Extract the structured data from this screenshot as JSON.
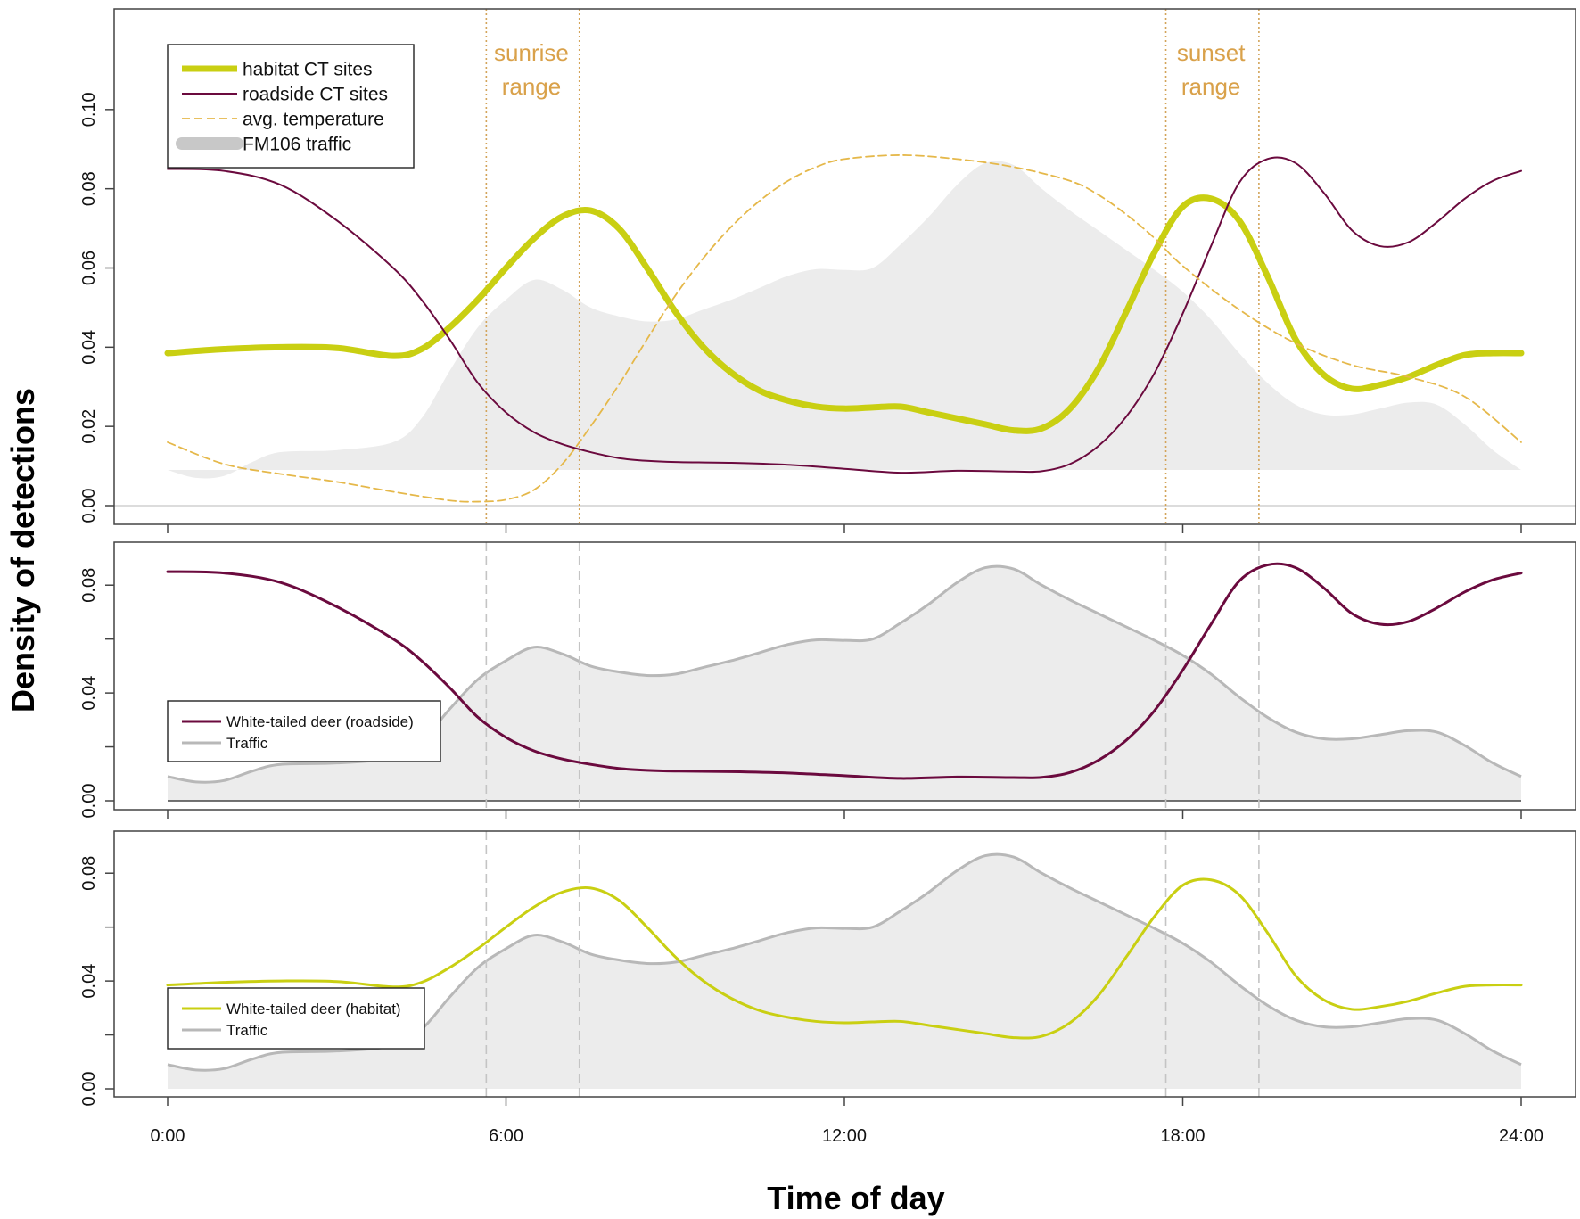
{
  "colors": {
    "habitat": "#c9cf12",
    "roadside": "#6b0a3e",
    "temperature": "#e5b84a",
    "traffic_fill": "#ececec",
    "traffic_line": "#b8b8b8",
    "annotation": "#d9a14a",
    "guide_top": "#d3a45a",
    "guide_lower": "#c4c4c4"
  },
  "figure": {
    "xlabel": "Time of day",
    "ylabel": "Density of detections"
  },
  "chart_data": [
    {
      "type": "line",
      "panel": "top",
      "xlim": [
        0,
        24
      ],
      "ylim": [
        0,
        0.12
      ],
      "xticks": [
        0,
        6,
        12,
        18,
        24
      ],
      "xtick_labels": [
        "0:00",
        "6:00",
        "12:00",
        "18:00",
        "24:00"
      ],
      "yticks": [
        0,
        0.02,
        0.04,
        0.06,
        0.08,
        0.1
      ],
      "ytick_labels": [
        "0.00",
        "0.02",
        "0.04",
        "0.06",
        "0.08",
        "0.10"
      ],
      "guides": [
        5.65,
        7.3,
        17.7,
        19.35
      ],
      "annotations": [
        {
          "lines": [
            "sunrise",
            "range"
          ],
          "x": 6.45
        },
        {
          "lines": [
            "sunset",
            "range"
          ],
          "x": 18.5
        }
      ],
      "legend": {
        "position": "top-left",
        "entries": [
          {
            "label": "habitat CT sites",
            "style": "habitat-thick"
          },
          {
            "label": "roadside CT sites",
            "style": "roadside-thin"
          },
          {
            "label": "avg. temperature",
            "style": "temperature-dashed"
          },
          {
            "label": "FM106 traffic",
            "style": "traffic-band"
          }
        ]
      },
      "series": [
        {
          "name": "habitat CT sites",
          "style": "habitat-thick",
          "x": [
            0,
            1,
            2,
            3,
            4,
            4.5,
            5,
            5.5,
            6,
            6.5,
            7,
            7.5,
            8,
            8.5,
            9,
            9.5,
            10,
            10.5,
            11,
            11.5,
            12,
            12.5,
            13,
            13.5,
            14,
            14.5,
            15,
            15.5,
            16,
            16.5,
            17,
            17.5,
            18,
            18.5,
            19,
            19.5,
            20,
            20.5,
            21,
            21.5,
            22,
            22.5,
            23,
            23.5,
            24
          ],
          "y": [
            0.0385,
            0.0395,
            0.04,
            0.0398,
            0.0378,
            0.0395,
            0.045,
            0.052,
            0.06,
            0.0675,
            0.073,
            0.0745,
            0.07,
            0.06,
            0.049,
            0.04,
            0.0335,
            0.029,
            0.0265,
            0.025,
            0.0245,
            0.0248,
            0.025,
            0.0235,
            0.022,
            0.0205,
            0.019,
            0.0195,
            0.0245,
            0.0345,
            0.049,
            0.064,
            0.0755,
            0.0775,
            0.072,
            0.058,
            0.042,
            0.033,
            0.0295,
            0.0305,
            0.0325,
            0.0355,
            0.038,
            0.0385,
            0.0385
          ]
        },
        {
          "name": "roadside CT sites",
          "style": "roadside-thin",
          "x": [
            0,
            1,
            2,
            3,
            4,
            4.5,
            5,
            5.5,
            6,
            6.5,
            7,
            7.5,
            8,
            8.5,
            9,
            10,
            11,
            12,
            13,
            14,
            15,
            15.5,
            16,
            16.5,
            17,
            17.5,
            18,
            18.5,
            19,
            19.5,
            20,
            20.5,
            21,
            21.5,
            22,
            22.5,
            23,
            23.5,
            24
          ],
          "y": [
            0.085,
            0.0845,
            0.081,
            0.072,
            0.06,
            0.052,
            0.042,
            0.031,
            0.0235,
            0.0185,
            0.0155,
            0.0135,
            0.012,
            0.0113,
            0.011,
            0.0108,
            0.0103,
            0.0093,
            0.0083,
            0.0088,
            0.0086,
            0.0087,
            0.0105,
            0.015,
            0.0225,
            0.0335,
            0.0485,
            0.0655,
            0.0815,
            0.0875,
            0.0865,
            0.079,
            0.0695,
            0.0655,
            0.0665,
            0.0715,
            0.0775,
            0.082,
            0.0845
          ]
        },
        {
          "name": "avg. temperature",
          "style": "temperature-dashed",
          "x": [
            0,
            1,
            2,
            3,
            4,
            5,
            5.5,
            6,
            6.5,
            7,
            7.5,
            8,
            8.5,
            9,
            9.5,
            10,
            10.5,
            11,
            11.5,
            12,
            13,
            14,
            15,
            16,
            16.5,
            17,
            17.5,
            18,
            19,
            20,
            21,
            22,
            23,
            24
          ],
          "y": [
            0.016,
            0.0105,
            0.008,
            0.006,
            0.0035,
            0.0013,
            0.001,
            0.0015,
            0.004,
            0.0105,
            0.02,
            0.0305,
            0.042,
            0.053,
            0.0625,
            0.0705,
            0.077,
            0.082,
            0.0855,
            0.0875,
            0.0885,
            0.0875,
            0.0855,
            0.082,
            0.0785,
            0.0735,
            0.0675,
            0.0605,
            0.0495,
            0.041,
            0.0355,
            0.0325,
            0.0275,
            0.016
          ]
        },
        {
          "name": "FM106 traffic",
          "style": "traffic-band",
          "x": [
            0,
            0.5,
            1,
            1.5,
            2,
            3,
            4,
            4.5,
            5,
            5.5,
            6,
            6.5,
            7,
            7.5,
            8,
            8.5,
            9,
            9.5,
            10,
            10.5,
            11,
            11.5,
            12,
            12.5,
            13,
            13.5,
            14,
            14.5,
            15,
            15.5,
            16,
            16.5,
            17,
            17.5,
            18,
            18.5,
            19,
            19.5,
            20,
            20.5,
            21,
            21.5,
            22,
            22.5,
            23,
            23.5,
            24
          ],
          "y": [
            0.009,
            0.007,
            0.0075,
            0.011,
            0.0135,
            0.014,
            0.016,
            0.022,
            0.034,
            0.045,
            0.052,
            0.057,
            0.0545,
            0.05,
            0.0478,
            0.0465,
            0.047,
            0.0495,
            0.052,
            0.055,
            0.058,
            0.0597,
            0.0595,
            0.06,
            0.066,
            0.073,
            0.081,
            0.0865,
            0.086,
            0.08,
            0.0745,
            0.0695,
            0.0645,
            0.0595,
            0.054,
            0.047,
            0.0385,
            0.031,
            0.0255,
            0.023,
            0.023,
            0.0245,
            0.026,
            0.0255,
            0.0205,
            0.014,
            0.009
          ]
        }
      ]
    },
    {
      "type": "line",
      "panel": "middle",
      "xlim": [
        0,
        24
      ],
      "ylim": [
        0,
        0.09
      ],
      "xticks": [
        0,
        6,
        12,
        18,
        24
      ],
      "yticks": [
        0,
        0.02,
        0.04,
        0.06,
        0.08
      ],
      "ytick_labels": [
        "0.00",
        "0.04",
        "0.08"
      ],
      "ytick_labeled": [
        0,
        0.04,
        0.08
      ],
      "guides": [
        5.65,
        7.3,
        17.7,
        19.35
      ],
      "legend": {
        "position": "bottom-left",
        "entries": [
          {
            "label": "White-tailed deer (roadside)",
            "style": "roadside-medium"
          },
          {
            "label": "Traffic",
            "style": "traffic-line"
          }
        ]
      },
      "series": [
        {
          "name": "Traffic",
          "style": "traffic-area",
          "x": [
            0,
            0.5,
            1,
            1.5,
            2,
            3,
            4,
            4.5,
            5,
            5.5,
            6,
            6.5,
            7,
            7.5,
            8,
            8.5,
            9,
            9.5,
            10,
            10.5,
            11,
            11.5,
            12,
            12.5,
            13,
            13.5,
            14,
            14.5,
            15,
            15.5,
            16,
            16.5,
            17,
            17.5,
            18,
            18.5,
            19,
            19.5,
            20,
            20.5,
            21,
            21.5,
            22,
            22.5,
            23,
            23.5,
            24
          ],
          "y": [
            0.009,
            0.007,
            0.0075,
            0.011,
            0.0135,
            0.014,
            0.016,
            0.022,
            0.034,
            0.045,
            0.052,
            0.057,
            0.0545,
            0.05,
            0.0478,
            0.0465,
            0.047,
            0.0495,
            0.052,
            0.055,
            0.058,
            0.0597,
            0.0595,
            0.06,
            0.066,
            0.073,
            0.081,
            0.0865,
            0.086,
            0.08,
            0.0745,
            0.0695,
            0.0645,
            0.0595,
            0.054,
            0.047,
            0.0385,
            0.031,
            0.0255,
            0.023,
            0.023,
            0.0245,
            0.026,
            0.0255,
            0.0205,
            0.014,
            0.009
          ]
        },
        {
          "name": "White-tailed deer (roadside)",
          "style": "roadside-medium",
          "x": [
            0,
            1,
            2,
            3,
            4,
            4.5,
            5,
            5.5,
            6,
            6.5,
            7,
            7.5,
            8,
            8.5,
            9,
            10,
            11,
            12,
            13,
            14,
            15,
            15.5,
            16,
            16.5,
            17,
            17.5,
            18,
            18.5,
            19,
            19.5,
            20,
            20.5,
            21,
            21.5,
            22,
            22.5,
            23,
            23.5,
            24
          ],
          "y": [
            0.085,
            0.0845,
            0.081,
            0.072,
            0.06,
            0.052,
            0.042,
            0.031,
            0.0235,
            0.0185,
            0.0155,
            0.0135,
            0.012,
            0.0113,
            0.011,
            0.0108,
            0.0103,
            0.0093,
            0.0083,
            0.0088,
            0.0086,
            0.0087,
            0.0105,
            0.015,
            0.0225,
            0.0335,
            0.0485,
            0.0655,
            0.0815,
            0.0875,
            0.0865,
            0.079,
            0.0695,
            0.0655,
            0.0665,
            0.0715,
            0.0775,
            0.082,
            0.0845
          ]
        }
      ]
    },
    {
      "type": "line",
      "panel": "bottom",
      "xlim": [
        0,
        24
      ],
      "ylim": [
        0,
        0.09
      ],
      "xticks": [
        0,
        6,
        12,
        18,
        24
      ],
      "xtick_labels": [
        "0:00",
        "6:00",
        "12:00",
        "18:00",
        "24:00"
      ],
      "yticks": [
        0,
        0.02,
        0.04,
        0.06,
        0.08
      ],
      "ytick_labels": [
        "0.00",
        "0.04",
        "0.08"
      ],
      "ytick_labeled": [
        0,
        0.04,
        0.08
      ],
      "guides": [
        5.65,
        7.3,
        17.7,
        19.35
      ],
      "legend": {
        "position": "bottom-left",
        "entries": [
          {
            "label": "White-tailed deer (habitat)",
            "style": "habitat-medium"
          },
          {
            "label": "Traffic",
            "style": "traffic-line"
          }
        ]
      },
      "series": [
        {
          "name": "Traffic",
          "style": "traffic-area",
          "x": [
            0,
            0.5,
            1,
            1.5,
            2,
            3,
            4,
            4.5,
            5,
            5.5,
            6,
            6.5,
            7,
            7.5,
            8,
            8.5,
            9,
            9.5,
            10,
            10.5,
            11,
            11.5,
            12,
            12.5,
            13,
            13.5,
            14,
            14.5,
            15,
            15.5,
            16,
            16.5,
            17,
            17.5,
            18,
            18.5,
            19,
            19.5,
            20,
            20.5,
            21,
            21.5,
            22,
            22.5,
            23,
            23.5,
            24
          ],
          "y": [
            0.009,
            0.007,
            0.0075,
            0.011,
            0.0135,
            0.014,
            0.016,
            0.022,
            0.034,
            0.045,
            0.052,
            0.057,
            0.0545,
            0.05,
            0.0478,
            0.0465,
            0.047,
            0.0495,
            0.052,
            0.055,
            0.058,
            0.0597,
            0.0595,
            0.06,
            0.066,
            0.073,
            0.081,
            0.0865,
            0.086,
            0.08,
            0.0745,
            0.0695,
            0.0645,
            0.0595,
            0.054,
            0.047,
            0.0385,
            0.031,
            0.0255,
            0.023,
            0.023,
            0.0245,
            0.026,
            0.0255,
            0.0205,
            0.014,
            0.009
          ]
        },
        {
          "name": "White-tailed deer (habitat)",
          "style": "habitat-medium",
          "x": [
            0,
            1,
            2,
            3,
            4,
            4.5,
            5,
            5.5,
            6,
            6.5,
            7,
            7.5,
            8,
            8.5,
            9,
            9.5,
            10,
            10.5,
            11,
            11.5,
            12,
            12.5,
            13,
            13.5,
            14,
            14.5,
            15,
            15.5,
            16,
            16.5,
            17,
            17.5,
            18,
            18.5,
            19,
            19.5,
            20,
            20.5,
            21,
            21.5,
            22,
            22.5,
            23,
            23.5,
            24
          ],
          "y": [
            0.0385,
            0.0395,
            0.04,
            0.0398,
            0.0378,
            0.0395,
            0.045,
            0.052,
            0.06,
            0.0675,
            0.073,
            0.0745,
            0.07,
            0.06,
            0.049,
            0.04,
            0.0335,
            0.029,
            0.0265,
            0.025,
            0.0245,
            0.0248,
            0.025,
            0.0235,
            0.022,
            0.0205,
            0.019,
            0.0195,
            0.0245,
            0.0345,
            0.049,
            0.064,
            0.0755,
            0.0775,
            0.072,
            0.058,
            0.042,
            0.033,
            0.0295,
            0.0305,
            0.0325,
            0.0355,
            0.038,
            0.0385,
            0.0385
          ]
        }
      ]
    }
  ]
}
